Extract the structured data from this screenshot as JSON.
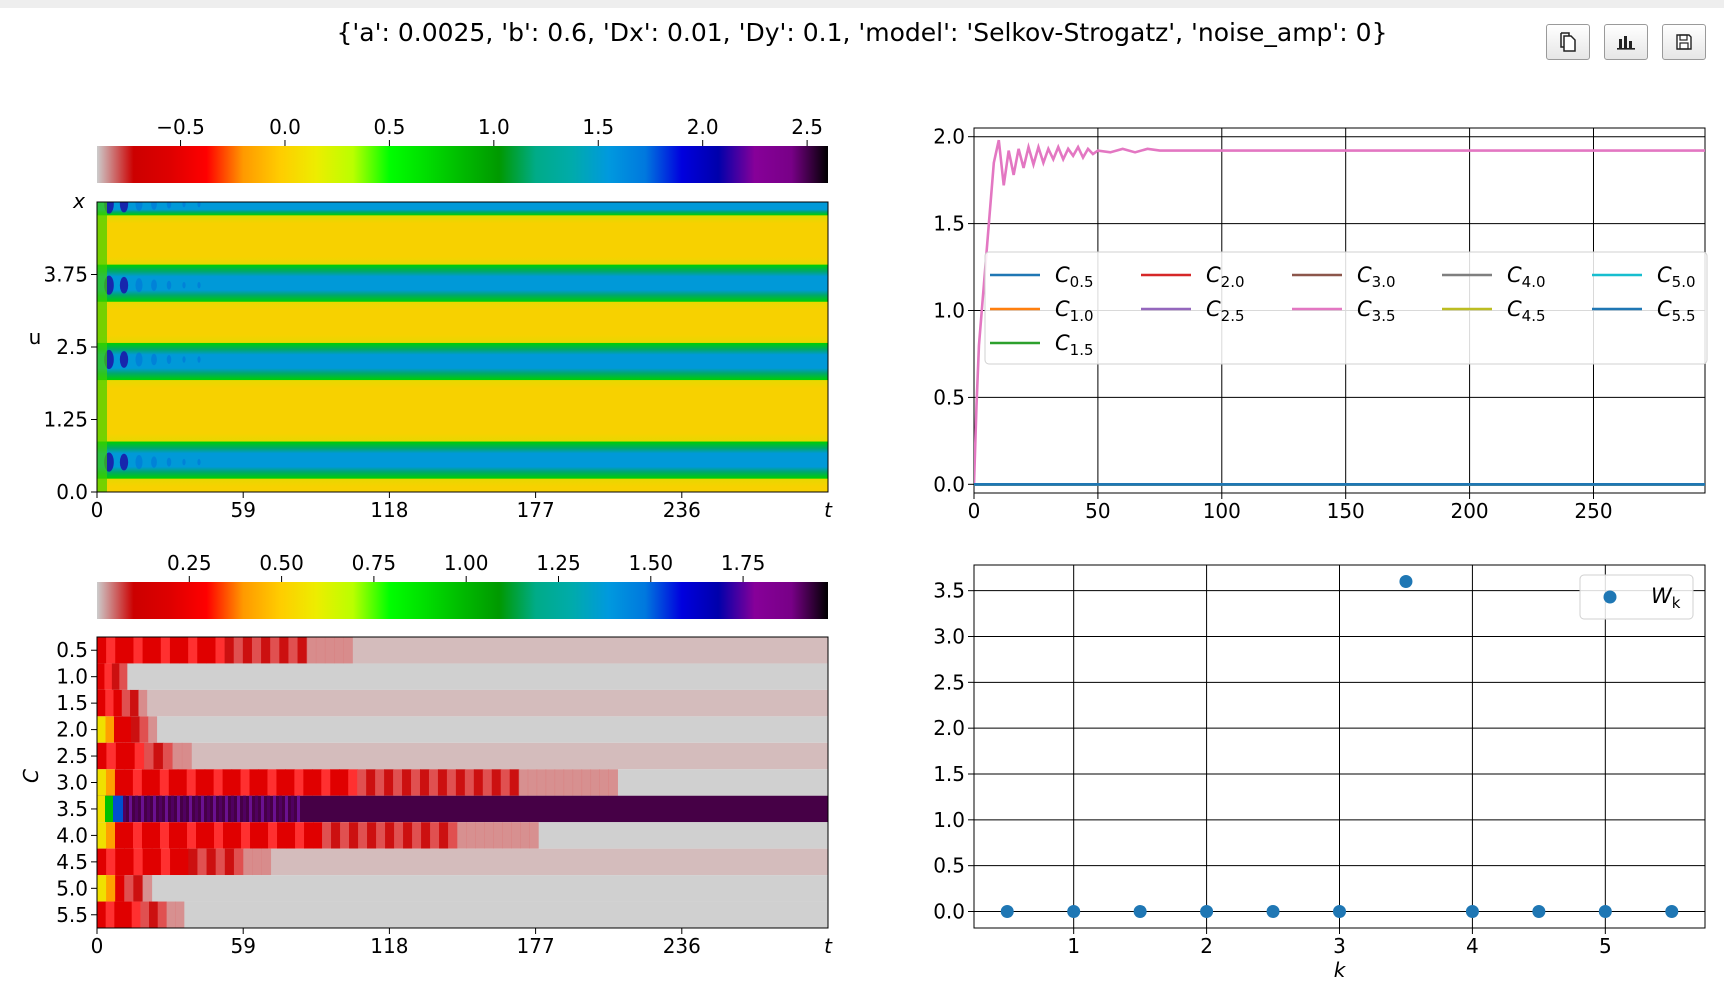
{
  "header": {
    "title": "{'a': 0.0025, 'b': 0.6, 'Dx': 0.01, 'Dy': 0.1, 'model': 'Selkov-Strogatz', 'noise_amp': 0}"
  },
  "toolbar": [
    {
      "name": "copy-button",
      "icon": "copy-icon"
    },
    {
      "name": "chart-button",
      "icon": "bar-chart-icon"
    },
    {
      "name": "save-button",
      "icon": "floppy-disk-icon"
    }
  ],
  "chart_data": [
    {
      "type": "heatmap",
      "colormap": "nipy_spectral",
      "colorbar": {
        "ticks": [
          "−0.5",
          "0.0",
          "0.5",
          "1.0",
          "1.5",
          "2.0",
          "2.5"
        ],
        "range": [
          -0.9,
          2.6
        ]
      },
      "xlabel": "t",
      "ylabel": "u",
      "corner_label": "x",
      "xticks": [
        "0",
        "59",
        "118",
        "177",
        "236"
      ],
      "yticks": [
        "0.0",
        "1.25",
        "2.5",
        "3.75"
      ],
      "xlim": [
        0,
        295
      ],
      "ylim": [
        0,
        5
      ],
      "bands": [
        {
          "center": 0.55,
          "halfwidth": 0.32
        },
        {
          "center": 2.25,
          "halfwidth": 0.32
        },
        {
          "center": 3.6,
          "halfwidth": 0.32
        },
        {
          "center": 4.93,
          "halfwidth": 0.16
        }
      ]
    },
    {
      "type": "line",
      "xticks": [
        "0",
        "50",
        "100",
        "150",
        "200",
        "250"
      ],
      "yticks": [
        "0.0",
        "0.5",
        "1.0",
        "1.5",
        "2.0"
      ],
      "xlim": [
        0,
        295
      ],
      "ylim": [
        -0.05,
        2.05
      ],
      "grid": true,
      "legend_position": "center-right",
      "series": [
        {
          "name": "C0.5",
          "label": "C",
          "sub": "0.5",
          "color": "#1f77b4",
          "steady": 0.0
        },
        {
          "name": "C1.0",
          "label": "C",
          "sub": "1.0",
          "color": "#ff7f0e",
          "steady": 0.0
        },
        {
          "name": "C1.5",
          "label": "C",
          "sub": "1.5",
          "color": "#2ca02c",
          "steady": 0.0
        },
        {
          "name": "C2.0",
          "label": "C",
          "sub": "2.0",
          "color": "#d62728",
          "steady": 0.0
        },
        {
          "name": "C2.5",
          "label": "C",
          "sub": "2.5",
          "color": "#9467bd",
          "steady": 0.0
        },
        {
          "name": "C3.0",
          "label": "C",
          "sub": "3.0",
          "color": "#8c564b",
          "steady": 0.0
        },
        {
          "name": "C3.5",
          "label": "C",
          "sub": "3.5",
          "color": "#e377c2",
          "steady": 1.92,
          "x": [
            0,
            1,
            2,
            4,
            6,
            8,
            10,
            12,
            14,
            16,
            18,
            20,
            22,
            24,
            26,
            28,
            30,
            32,
            34,
            36,
            38,
            40,
            42,
            44,
            46,
            48,
            50,
            55,
            60,
            65,
            70,
            75,
            80,
            90,
            100,
            120,
            150,
            200,
            250,
            295
          ],
          "y": [
            0.0,
            0.45,
            0.8,
            1.15,
            1.5,
            1.85,
            1.98,
            1.72,
            1.92,
            1.78,
            1.93,
            1.82,
            1.94,
            1.84,
            1.94,
            1.85,
            1.93,
            1.87,
            1.94,
            1.87,
            1.93,
            1.89,
            1.94,
            1.88,
            1.93,
            1.9,
            1.92,
            1.91,
            1.93,
            1.91,
            1.93,
            1.92,
            1.92,
            1.92,
            1.92,
            1.92,
            1.92,
            1.92,
            1.92,
            1.92
          ]
        },
        {
          "name": "C4.0",
          "label": "C",
          "sub": "4.0",
          "color": "#7f7f7f",
          "steady": 0.0
        },
        {
          "name": "C4.5",
          "label": "C",
          "sub": "4.5",
          "color": "#bcbd22",
          "steady": 0.0
        },
        {
          "name": "C5.0",
          "label": "C",
          "sub": "5.0",
          "color": "#17becf",
          "steady": 0.0
        },
        {
          "name": "C5.5",
          "label": "C",
          "sub": "5.5",
          "color": "#1f77b4",
          "steady": 0.0
        }
      ]
    },
    {
      "type": "heatmap",
      "colormap": "nipy_spectral",
      "colorbar": {
        "ticks": [
          "0.25",
          "0.50",
          "0.75",
          "1.00",
          "1.25",
          "1.50",
          "1.75"
        ],
        "range": [
          0.0,
          1.98
        ]
      },
      "xlabel": "t",
      "ylabel": "C",
      "xticks": [
        "0",
        "59",
        "118",
        "177",
        "236"
      ],
      "rows": [
        "0.5",
        "1.0",
        "1.5",
        "2.0",
        "2.5",
        "3.0",
        "3.5",
        "4.0",
        "4.5",
        "5.0",
        "5.5"
      ],
      "xlim": [
        0,
        295
      ],
      "row_activity": [
        {
          "row": "0.5",
          "active_until": 103,
          "tail": "rose"
        },
        {
          "row": "1.0",
          "active_until": 12,
          "tail": "grey"
        },
        {
          "row": "1.5",
          "active_until": 20,
          "tail": "rose"
        },
        {
          "row": "2.0",
          "active_until": 24,
          "tail": "grey"
        },
        {
          "row": "2.5",
          "active_until": 38,
          "tail": "rose"
        },
        {
          "row": "3.0",
          "active_until": 210,
          "tail": "grey"
        },
        {
          "row": "3.5",
          "active_until": 295,
          "tail": "dark"
        },
        {
          "row": "4.0",
          "active_until": 178,
          "tail": "grey"
        },
        {
          "row": "4.5",
          "active_until": 70,
          "tail": "rose"
        },
        {
          "row": "5.0",
          "active_until": 22,
          "tail": "grey"
        },
        {
          "row": "5.5",
          "active_until": 35,
          "tail": "grey"
        }
      ]
    },
    {
      "type": "scatter",
      "xlabel": "k",
      "xticks": [
        "1",
        "2",
        "3",
        "4",
        "5"
      ],
      "yticks": [
        "0.0",
        "0.5",
        "1.0",
        "1.5",
        "2.0",
        "2.5",
        "3.0",
        "3.5"
      ],
      "xlim": [
        0.25,
        5.75
      ],
      "ylim": [
        -0.18,
        3.78
      ],
      "grid": true,
      "legend_position": "upper-right",
      "series": [
        {
          "name": "Wk",
          "label": "W",
          "sub": "k",
          "color": "#1f77b4",
          "x": [
            0.5,
            1.0,
            1.5,
            2.0,
            2.5,
            3.0,
            3.5,
            4.0,
            4.5,
            5.0,
            5.5
          ],
          "y": [
            0,
            0,
            0,
            0,
            0,
            0,
            3.6,
            0,
            0,
            0,
            0
          ]
        }
      ]
    }
  ]
}
